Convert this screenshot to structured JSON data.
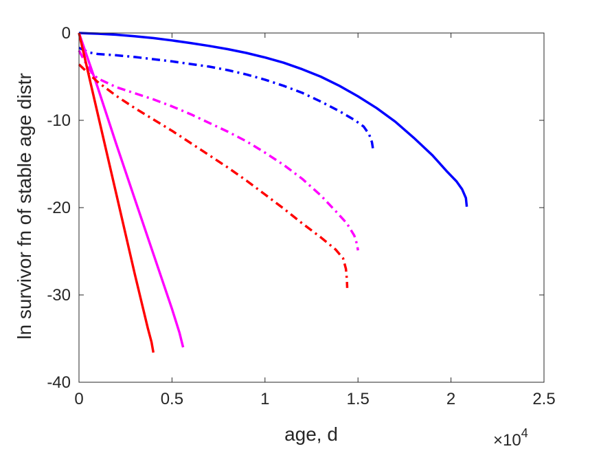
{
  "chart_data": {
    "type": "line",
    "title": "",
    "xlabel": "age, d",
    "ylabel": "ln survivor fn of stable age distr",
    "x_exponent_label": "×10",
    "x_exponent_power": "4",
    "xlim": [
      0,
      25000
    ],
    "ylim": [
      -40,
      0
    ],
    "x_ticks": [
      0,
      5000,
      10000,
      15000,
      20000,
      25000
    ],
    "x_tick_labels": [
      "0",
      "0.5",
      "1",
      "1.5",
      "2",
      "2.5"
    ],
    "y_ticks": [
      0,
      -10,
      -20,
      -30,
      -40
    ],
    "y_tick_labels": [
      "0",
      "-10",
      "-20",
      "-30",
      "-40"
    ],
    "grid": false,
    "legend": "none",
    "series": [
      {
        "color": "#0000ff",
        "style": "solid",
        "points": [
          [
            0,
            0
          ],
          [
            1000,
            -0.08
          ],
          [
            2000,
            -0.2
          ],
          [
            3000,
            -0.38
          ],
          [
            4000,
            -0.58
          ],
          [
            5000,
            -0.85
          ],
          [
            6000,
            -1.15
          ],
          [
            7000,
            -1.48
          ],
          [
            8000,
            -1.85
          ],
          [
            9000,
            -2.28
          ],
          [
            10000,
            -2.8
          ],
          [
            11000,
            -3.4
          ],
          [
            12000,
            -4.15
          ],
          [
            13000,
            -5.0
          ],
          [
            14000,
            -6.05
          ],
          [
            15000,
            -7.25
          ],
          [
            16000,
            -8.6
          ],
          [
            17000,
            -10.15
          ],
          [
            18000,
            -12.0
          ],
          [
            19000,
            -14.0
          ],
          [
            19800,
            -15.9
          ],
          [
            20300,
            -17.0
          ],
          [
            20600,
            -17.9
          ],
          [
            20800,
            -18.9
          ],
          [
            20850,
            -19.9
          ]
        ]
      },
      {
        "color": "#0000ff",
        "style": "dashdot",
        "points": [
          [
            0,
            -1.7
          ],
          [
            300,
            -2.0
          ],
          [
            600,
            -2.25
          ],
          [
            1000,
            -2.4
          ],
          [
            2000,
            -2.55
          ],
          [
            3000,
            -2.75
          ],
          [
            4000,
            -3.0
          ],
          [
            5000,
            -3.25
          ],
          [
            6000,
            -3.55
          ],
          [
            7000,
            -3.85
          ],
          [
            8000,
            -4.25
          ],
          [
            9000,
            -4.75
          ],
          [
            10000,
            -5.35
          ],
          [
            11000,
            -6.05
          ],
          [
            12000,
            -6.85
          ],
          [
            13000,
            -7.85
          ],
          [
            14000,
            -8.95
          ],
          [
            14800,
            -9.95
          ],
          [
            15300,
            -10.7
          ],
          [
            15600,
            -11.6
          ],
          [
            15750,
            -12.5
          ],
          [
            15800,
            -13.2
          ]
        ]
      },
      {
        "color": "#ff00ff",
        "style": "solid",
        "points": [
          [
            0,
            0
          ],
          [
            1000,
            -6.2
          ],
          [
            2000,
            -12.7
          ],
          [
            3000,
            -19.0
          ],
          [
            4000,
            -25.3
          ],
          [
            5000,
            -31.6
          ],
          [
            5400,
            -34.3
          ],
          [
            5600,
            -36.0
          ]
        ]
      },
      {
        "color": "#ff00ff",
        "style": "dashdot",
        "points": [
          [
            0,
            -2.0
          ],
          [
            300,
            -3.2
          ],
          [
            700,
            -4.6
          ],
          [
            1000,
            -5.2
          ],
          [
            2000,
            -6.2
          ],
          [
            3000,
            -6.9
          ],
          [
            4000,
            -7.6
          ],
          [
            5000,
            -8.4
          ],
          [
            6000,
            -9.3
          ],
          [
            7000,
            -10.3
          ],
          [
            8000,
            -11.3
          ],
          [
            9000,
            -12.4
          ],
          [
            10000,
            -13.7
          ],
          [
            11000,
            -15.1
          ],
          [
            12000,
            -16.7
          ],
          [
            13000,
            -18.6
          ],
          [
            13800,
            -20.4
          ],
          [
            14400,
            -21.8
          ],
          [
            14800,
            -23.2
          ],
          [
            14950,
            -24.2
          ],
          [
            15000,
            -24.9
          ]
        ]
      },
      {
        "color": "#ff0000",
        "style": "solid",
        "points": [
          [
            0,
            0
          ],
          [
            1000,
            -9.2
          ],
          [
            2000,
            -18.4
          ],
          [
            3000,
            -27.6
          ],
          [
            3700,
            -33.8
          ],
          [
            3900,
            -35.4
          ],
          [
            4000,
            -36.6
          ]
        ]
      },
      {
        "color": "#ff0000",
        "style": "dashdot",
        "points": [
          [
            0,
            -3.6
          ],
          [
            200,
            -4.0
          ],
          [
            500,
            -4.6
          ],
          [
            1000,
            -5.6
          ],
          [
            2000,
            -7.2
          ],
          [
            3000,
            -8.6
          ],
          [
            4000,
            -9.9
          ],
          [
            5000,
            -11.2
          ],
          [
            6000,
            -12.6
          ],
          [
            7000,
            -14.0
          ],
          [
            8000,
            -15.4
          ],
          [
            9000,
            -16.9
          ],
          [
            10000,
            -18.5
          ],
          [
            11000,
            -20.1
          ],
          [
            12000,
            -21.8
          ],
          [
            13000,
            -23.4
          ],
          [
            13800,
            -24.8
          ],
          [
            14200,
            -25.8
          ],
          [
            14350,
            -27.0
          ],
          [
            14400,
            -28.2
          ],
          [
            14420,
            -29.2
          ]
        ]
      }
    ]
  }
}
